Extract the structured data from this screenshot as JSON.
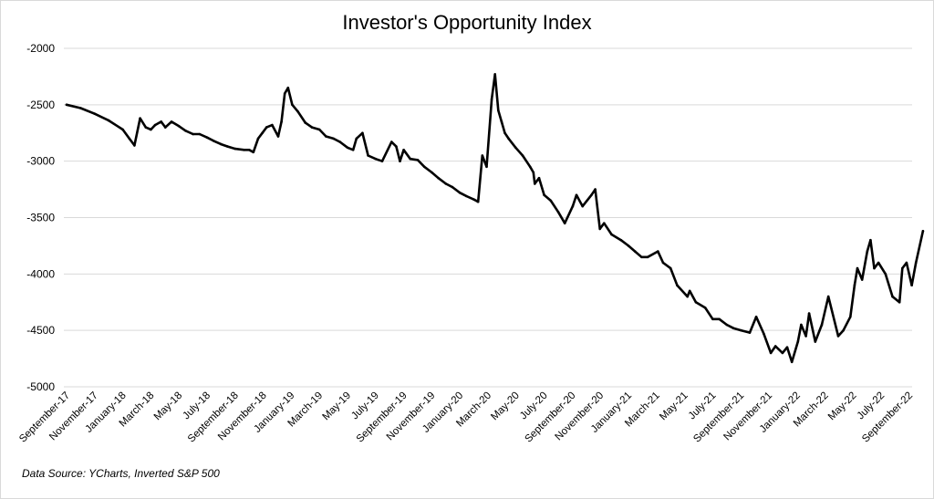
{
  "chart_data": {
    "type": "line",
    "title": "Investor's Opportunity Index",
    "xlabel": "",
    "ylabel": "",
    "ylim": [
      -5000,
      -2000
    ],
    "yticks": [
      -2000,
      -2500,
      -3000,
      -3500,
      -4000,
      -4500,
      -5000
    ],
    "xtick_labels": [
      "September-17",
      "November-17",
      "January-18",
      "March-18",
      "May-18",
      "July-18",
      "September-18",
      "November-18",
      "January-19",
      "March-19",
      "May-19",
      "July-19",
      "September-19",
      "November-19",
      "January-20",
      "March-20",
      "May-20",
      "July-20",
      "September-20",
      "November-20",
      "January-21",
      "March-21",
      "May-21",
      "July-21",
      "September-21",
      "November-21",
      "January-22",
      "March-22",
      "May-22",
      "July-22",
      "September-22"
    ],
    "grid": "horizontal",
    "legend": "none",
    "line_color": "#000000",
    "series": [
      {
        "x": [
          "2017-09-01",
          "2017-10-01",
          "2017-11-01",
          "2017-12-01",
          "2018-01-01",
          "2018-01-15",
          "2018-01-26",
          "2018-02-08",
          "2018-02-20",
          "2018-03-01",
          "2018-03-10",
          "2018-03-23",
          "2018-04-02",
          "2018-04-15",
          "2018-05-01",
          "2018-05-15",
          "2018-06-01",
          "2018-06-15",
          "2018-07-01",
          "2018-07-15",
          "2018-08-01",
          "2018-08-15",
          "2018-09-01",
          "2018-09-20",
          "2018-10-01",
          "2018-10-10",
          "2018-10-20",
          "2018-10-29",
          "2018-11-08",
          "2018-11-20",
          "2018-12-03",
          "2018-12-10",
          "2018-12-17",
          "2018-12-24",
          "2019-01-03",
          "2019-01-15",
          "2019-02-01",
          "2019-02-15",
          "2019-03-01",
          "2019-03-15",
          "2019-04-01",
          "2019-04-15",
          "2019-05-01",
          "2019-05-13",
          "2019-05-20",
          "2019-06-03",
          "2019-06-15",
          "2019-07-01",
          "2019-07-15",
          "2019-08-05",
          "2019-08-15",
          "2019-08-23",
          "2019-09-01",
          "2019-09-15",
          "2019-10-01",
          "2019-10-15",
          "2019-11-01",
          "2019-11-15",
          "2019-12-01",
          "2019-12-15",
          "2020-01-01",
          "2020-01-15",
          "2020-01-31",
          "2020-02-10",
          "2020-02-19",
          "2020-02-28",
          "2020-03-09",
          "2020-03-16",
          "2020-03-23",
          "2020-03-30",
          "2020-04-07",
          "2020-04-15",
          "2020-04-30",
          "2020-05-15",
          "2020-06-01",
          "2020-06-08",
          "2020-06-11",
          "2020-06-20",
          "2020-07-01",
          "2020-07-15",
          "2020-08-01",
          "2020-08-15",
          "2020-09-02",
          "2020-09-10",
          "2020-09-23",
          "2020-10-12",
          "2020-10-20",
          "2020-10-30",
          "2020-11-09",
          "2020-11-25",
          "2020-12-15",
          "2021-01-01",
          "2021-01-15",
          "2021-01-29",
          "2021-02-12",
          "2021-03-04",
          "2021-03-15",
          "2021-04-01",
          "2021-04-15",
          "2021-05-07",
          "2021-05-12",
          "2021-05-25",
          "2021-06-15",
          "2021-07-01",
          "2021-07-15",
          "2021-08-01",
          "2021-08-15",
          "2021-09-02",
          "2021-09-20",
          "2021-10-04",
          "2021-10-20",
          "2021-11-05",
          "2021-11-15",
          "2021-11-30",
          "2021-12-10",
          "2021-12-20",
          "2022-01-03",
          "2022-01-10",
          "2022-01-20",
          "2022-01-27",
          "2022-02-10",
          "2022-02-24",
          "2022-03-08",
          "2022-03-29",
          "2022-04-10",
          "2022-04-25",
          "2022-05-04",
          "2022-05-10",
          "2022-05-20",
          "2022-05-31",
          "2022-06-08",
          "2022-06-16",
          "2022-06-25",
          "2022-07-10",
          "2022-07-25",
          "2022-08-10",
          "2022-08-16",
          "2022-08-25",
          "2022-09-06",
          "2022-09-15",
          "2022-09-30"
        ],
        "values": [
          -2500,
          -2530,
          -2580,
          -2640,
          -2720,
          -2800,
          -2860,
          -2620,
          -2700,
          -2720,
          -2680,
          -2650,
          -2700,
          -2650,
          -2690,
          -2730,
          -2760,
          -2760,
          -2790,
          -2820,
          -2850,
          -2870,
          -2890,
          -2900,
          -2900,
          -2920,
          -2800,
          -2750,
          -2700,
          -2680,
          -2780,
          -2650,
          -2400,
          -2350,
          -2500,
          -2560,
          -2660,
          -2700,
          -2720,
          -2780,
          -2800,
          -2830,
          -2880,
          -2900,
          -2800,
          -2750,
          -2950,
          -2980,
          -3000,
          -2830,
          -2870,
          -3000,
          -2900,
          -2980,
          -2990,
          -3050,
          -3100,
          -3150,
          -3200,
          -3230,
          -3280,
          -3310,
          -3340,
          -3360,
          -2950,
          -3050,
          -2450,
          -2230,
          -2550,
          -2650,
          -2750,
          -2800,
          -2880,
          -2950,
          -3050,
          -3100,
          -3200,
          -3150,
          -3300,
          -3350,
          -3450,
          -3550,
          -3400,
          -3300,
          -3400,
          -3300,
          -3250,
          -3600,
          -3550,
          -3650,
          -3700,
          -3750,
          -3800,
          -3850,
          -3850,
          -3800,
          -3900,
          -3950,
          -4100,
          -4200,
          -4150,
          -4250,
          -4300,
          -4400,
          -4400,
          -4450,
          -4480,
          -4500,
          -4520,
          -4380,
          -4530,
          -4700,
          -4640,
          -4700,
          -4650,
          -4780,
          -4600,
          -4450,
          -4550,
          -4350,
          -4600,
          -4450,
          -4200,
          -4550,
          -4500,
          -4380,
          -4100,
          -3950,
          -4050,
          -3800,
          -3700,
          -3950,
          -3900,
          -4000,
          -4200,
          -4250,
          -3950,
          -3900,
          -4100,
          -3900,
          -3620
        ]
      }
    ]
  },
  "source_note": "Data Source: YCharts, Inverted S&P 500"
}
